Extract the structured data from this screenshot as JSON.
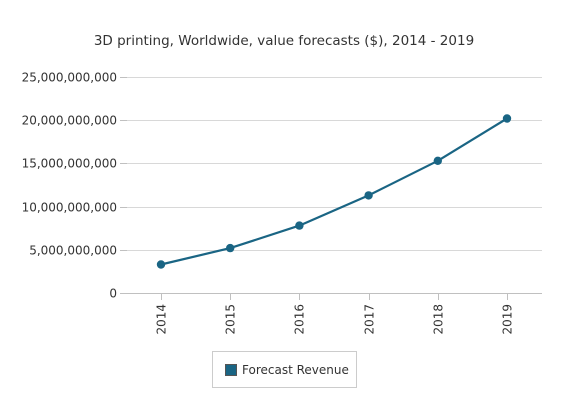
{
  "chart_data": {
    "type": "line",
    "title": "3D printing, Worldwide, value forecasts ($), 2014 - 2019",
    "xlabel": "",
    "ylabel": "",
    "categories": [
      "2014",
      "2015",
      "2016",
      "2017",
      "2018",
      "2019"
    ],
    "series": [
      {
        "name": "Forecast Revenue",
        "color": "#1a6584",
        "values": [
          3300000000,
          5200000000,
          7800000000,
          11300000000,
          15300000000,
          20200000000
        ]
      }
    ],
    "ylim": [
      0,
      25000000000
    ],
    "yticks": [
      0,
      5000000000,
      10000000000,
      15000000000,
      20000000000,
      25000000000
    ],
    "ytick_labels": [
      "0",
      "5,000,000,000",
      "10,000,000,000",
      "15,000,000,000",
      "20,000,000,000",
      "25,000,000,000"
    ],
    "grid": true,
    "legend_position": "bottom-center"
  }
}
